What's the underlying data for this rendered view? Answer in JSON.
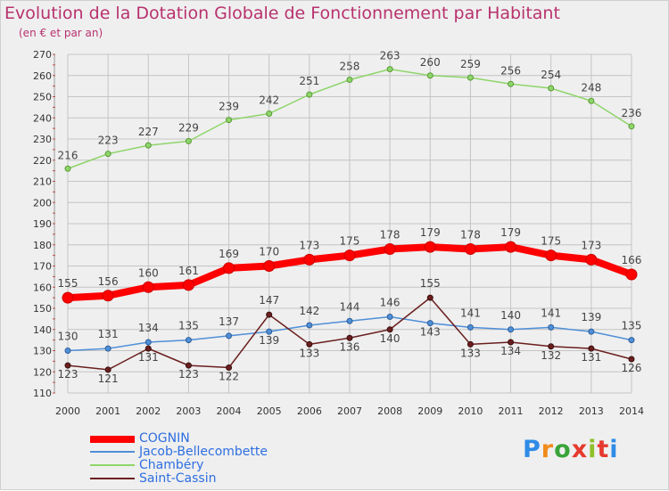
{
  "chart_data": {
    "type": "line",
    "title": "Evolution de la Dotation Globale de Fonctionnement par Habitant",
    "subtitle": "(en € et par an)",
    "xlabel": "",
    "ylabel": "",
    "ylim": [
      110,
      270
    ],
    "ytick_step": 10,
    "grid": true,
    "categories": [
      "2000",
      "2001",
      "2002",
      "2003",
      "2004",
      "2005",
      "2006",
      "2007",
      "2008",
      "2009",
      "2010",
      "2011",
      "2012",
      "2013",
      "2014"
    ],
    "series": [
      {
        "name": "COGNIN",
        "color": "#ff0000",
        "values": [
          155,
          156,
          160,
          161,
          169,
          170,
          173,
          175,
          178,
          179,
          178,
          179,
          175,
          173,
          166
        ]
      },
      {
        "name": "Jacob-Bellecombette",
        "color": "#4f8fd8",
        "values": [
          130,
          131,
          134,
          135,
          137,
          139,
          142,
          144,
          146,
          143,
          141,
          140,
          141,
          139,
          135
        ]
      },
      {
        "name": "Chambéry",
        "color": "#8ed56a",
        "values": [
          216,
          223,
          227,
          229,
          239,
          242,
          251,
          258,
          263,
          260,
          259,
          256,
          254,
          248,
          236
        ]
      },
      {
        "name": "Saint-Cassin",
        "color": "#6b1f1f",
        "values": [
          123,
          121,
          131,
          123,
          122,
          147,
          133,
          136,
          140,
          155,
          133,
          134,
          132,
          131,
          126
        ]
      }
    ],
    "legend_position": "bottom-left"
  },
  "logo_text": "Proxiti"
}
